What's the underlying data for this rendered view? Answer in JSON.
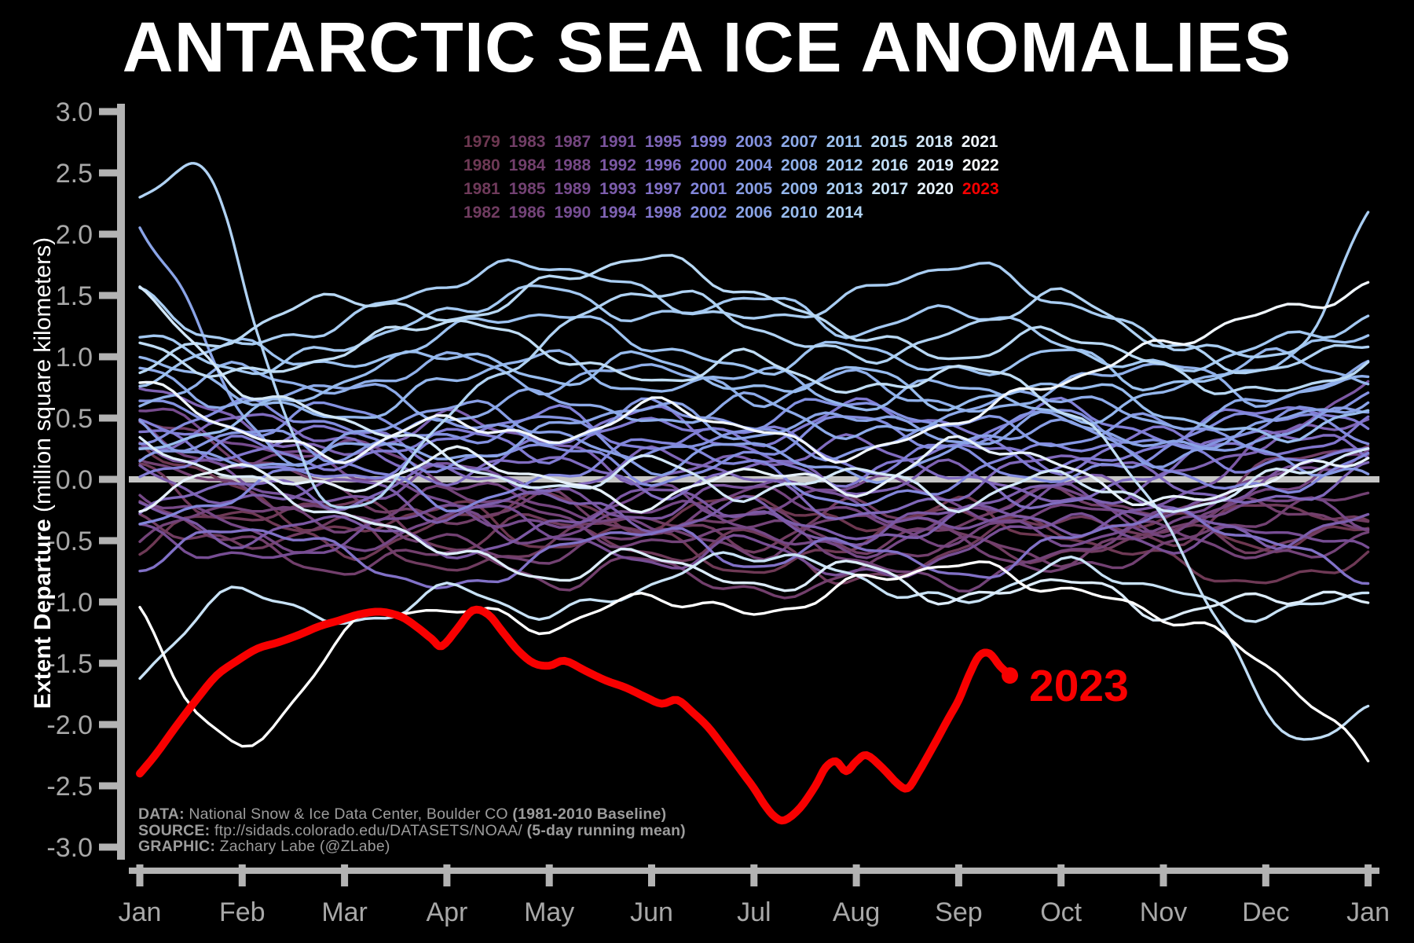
{
  "title": "ANTARCTIC SEA ICE ANOMALIES",
  "colors": {
    "background": "#000000",
    "axis": "#b3b3b3",
    "tick_label": "#a8a8a8",
    "zero_line": "#c6c6c6",
    "title_text": "#ffffff",
    "highlight_red": "#f80000",
    "footer_text": "#9c9c9c"
  },
  "y_axis": {
    "label_bold": "Extent Departure",
    "label_regular": " (million square kilometers)",
    "ticks": [
      "3.0",
      "2.5",
      "2.0",
      "1.5",
      "1.0",
      "0.5",
      "0.0",
      "-0.5",
      "-1.0",
      "-1.5",
      "-2.0",
      "-2.5",
      "-3.0"
    ]
  },
  "x_axis": {
    "ticks": [
      "Jan",
      "Feb",
      "Mar",
      "Apr",
      "May",
      "Jun",
      "Jul",
      "Aug",
      "Sep",
      "Oct",
      "Nov",
      "Dec",
      "Jan"
    ]
  },
  "annotation": {
    "label": "2023",
    "color": "#f80000"
  },
  "legend": {
    "rows": [
      [
        "1979",
        "1983",
        "1987",
        "1991",
        "1995",
        "1999",
        "2003",
        "2007",
        "2011",
        "2015",
        "2018",
        "2021"
      ],
      [
        "1980",
        "1984",
        "1988",
        "1992",
        "1996",
        "2000",
        "2004",
        "2008",
        "2012",
        "2016",
        "2019",
        "2022"
      ],
      [
        "1981",
        "1985",
        "1989",
        "1993",
        "1997",
        "2001",
        "2005",
        "2009",
        "2013",
        "2017",
        "2020",
        "2023"
      ],
      [
        "1982",
        "1986",
        "1990",
        "1994",
        "1998",
        "2002",
        "2006",
        "2010",
        "2014"
      ]
    ]
  },
  "footer": {
    "lines": [
      [
        {
          "t": "DATA: ",
          "b": 1
        },
        {
          "t": "National Snow & Ice Data Center, Boulder CO ",
          "b": 0
        },
        {
          "t": "(1981-2010 Baseline)",
          "b": 1
        }
      ],
      [
        {
          "t": "SOURCE: ",
          "b": 1
        },
        {
          "t": "ftp://sidads.colorado.edu/DATASETS/NOAA/ ",
          "b": 0
        },
        {
          "t": "(5-day running mean)",
          "b": 1
        }
      ],
      [
        {
          "t": "GRAPHIC: ",
          "b": 1
        },
        {
          "t": "Zachary Labe (@ZLabe)",
          "b": 0
        }
      ]
    ]
  },
  "chart_data": {
    "type": "line",
    "title": "ANTARCTIC SEA ICE ANOMALIES",
    "ylabel": "Extent Departure (million square kilometers)",
    "ylim": [
      -3.0,
      3.0
    ],
    "xlim_months": [
      0,
      12
    ],
    "yticks": [
      3.0,
      2.5,
      2.0,
      1.5,
      1.0,
      0.5,
      0.0,
      -0.5,
      -1.0,
      -1.5,
      -2.0,
      -2.5,
      -3.0
    ],
    "xtick_months": [
      0,
      1,
      2,
      3,
      4,
      5,
      6,
      7,
      8,
      9,
      10,
      11,
      12
    ],
    "zero_line": true,
    "grid": false,
    "legend_position": "top-center",
    "series": [
      {
        "year": "1979",
        "color": "#6d3750",
        "values": [
          0.3,
          -0.1,
          -0.45,
          -0.2,
          -0.55,
          -0.35,
          -0.15,
          -0.4,
          -0.2,
          -0.5,
          -0.3,
          -0.55,
          -0.35
        ]
      },
      {
        "year": "1980",
        "color": "#6e3955",
        "values": [
          -0.55,
          -0.25,
          -0.6,
          -0.35,
          -0.15,
          -0.45,
          -0.75,
          -0.5,
          -0.25,
          -0.45,
          -0.65,
          -0.85,
          -0.6
        ]
      },
      {
        "year": "1981",
        "color": "#6f3a5a",
        "values": [
          0.1,
          -0.35,
          -0.15,
          -0.55,
          -0.3,
          -0.65,
          -0.45,
          -0.85,
          -0.55,
          -0.3,
          -0.5,
          -0.2,
          -0.4
        ]
      },
      {
        "year": "1982",
        "color": "#703c60",
        "values": [
          -0.3,
          -0.55,
          -0.35,
          -0.75,
          -0.5,
          -0.3,
          -0.55,
          -0.2,
          -0.45,
          -0.65,
          -0.4,
          -0.55,
          -0.3
        ]
      },
      {
        "year": "1983",
        "color": "#713e66",
        "values": [
          0.5,
          0.2,
          -0.1,
          -0.35,
          -0.15,
          -0.45,
          -0.25,
          -0.55,
          -0.35,
          -0.1,
          -0.3,
          0.1,
          0.3
        ]
      },
      {
        "year": "1984",
        "color": "#723f6c",
        "values": [
          -0.2,
          -0.5,
          -0.75,
          -0.55,
          -0.85,
          -0.65,
          -0.95,
          -0.75,
          -0.5,
          -0.65,
          -0.4,
          -0.2,
          -0.45
        ]
      },
      {
        "year": "1985",
        "color": "#724172",
        "values": [
          0.2,
          -0.1,
          -0.3,
          -0.5,
          -0.65,
          -0.4,
          -0.6,
          -0.3,
          -0.5,
          -0.75,
          -0.55,
          -0.3,
          -0.1
        ]
      },
      {
        "year": "1986",
        "color": "#734378",
        "values": [
          -0.5,
          -0.2,
          -0.4,
          -0.1,
          -0.3,
          -0.55,
          -0.35,
          -0.65,
          -0.85,
          -0.6,
          -0.4,
          -0.65,
          -0.45
        ]
      },
      {
        "year": "1987",
        "color": "#74457f",
        "values": [
          0.4,
          0.1,
          0.3,
          0.0,
          -0.2,
          -0.4,
          -0.1,
          -0.3,
          -0.5,
          -0.2,
          -0.4,
          -0.1,
          0.2
        ]
      },
      {
        "year": "1988",
        "color": "#754886",
        "values": [
          -0.1,
          -0.4,
          -0.6,
          -0.3,
          -0.5,
          -0.2,
          -0.4,
          -0.6,
          -0.3,
          -0.1,
          -0.4,
          -0.15,
          -0.35
        ]
      },
      {
        "year": "1989",
        "color": "#764b8d",
        "values": [
          0.6,
          0.3,
          0.1,
          -0.2,
          -0.4,
          -0.1,
          -0.3,
          0.0,
          -0.2,
          -0.5,
          -0.3,
          0.0,
          0.2
        ]
      },
      {
        "year": "1990",
        "color": "#774e94",
        "values": [
          -0.4,
          -0.65,
          -0.5,
          -0.2,
          -0.4,
          -0.7,
          -0.5,
          -0.8,
          -0.6,
          -0.3,
          -0.55,
          -0.4,
          -0.6
        ]
      },
      {
        "year": "1991",
        "color": "#79539c",
        "values": [
          0.3,
          0.0,
          -0.2,
          0.1,
          -0.1,
          -0.3,
          0.0,
          -0.2,
          -0.4,
          -0.1,
          -0.3,
          0.0,
          0.3
        ]
      },
      {
        "year": "1992",
        "color": "#7b58a4",
        "values": [
          -0.2,
          -0.5,
          -0.3,
          -0.6,
          -0.4,
          -0.1,
          -0.3,
          -0.5,
          -0.2,
          -0.4,
          -0.2,
          0.3,
          0.8
        ]
      },
      {
        "year": "1993",
        "color": "#7c5dab",
        "values": [
          0.1,
          -0.2,
          0.0,
          -0.3,
          -0.1,
          -0.4,
          -0.2,
          -0.5,
          -0.3,
          0.0,
          -0.2,
          -0.5,
          -0.3
        ]
      },
      {
        "year": "1994",
        "color": "#7e62b2",
        "values": [
          0.8,
          0.45,
          0.2,
          0.5,
          0.3,
          0.0,
          0.2,
          -0.1,
          0.1,
          -0.2,
          0.0,
          0.3,
          0.5
        ]
      },
      {
        "year": "1995",
        "color": "#7f67b9",
        "values": [
          -0.3,
          0.0,
          -0.2,
          0.1,
          -0.1,
          0.2,
          0.0,
          -0.3,
          -0.1,
          0.2,
          0.0,
          -0.2,
          0.1
        ]
      },
      {
        "year": "1996",
        "color": "#806cc0",
        "values": [
          0.2,
          0.5,
          0.3,
          0.0,
          0.2,
          -0.1,
          0.1,
          0.3,
          0.0,
          -0.2,
          0.1,
          0.4,
          0.2
        ]
      },
      {
        "year": "1997",
        "color": "#8171c7",
        "values": [
          -0.7,
          -0.4,
          -0.6,
          -0.9,
          -0.6,
          -0.4,
          -0.7,
          -0.5,
          -0.8,
          -0.5,
          -0.3,
          -0.5,
          -0.8
        ]
      },
      {
        "year": "1998",
        "color": "#8176cd",
        "values": [
          0.4,
          0.2,
          0.45,
          0.1,
          0.3,
          0.55,
          0.2,
          0.0,
          0.3,
          0.1,
          0.4,
          0.2,
          0.45
        ]
      },
      {
        "year": "1999",
        "color": "#817bd2",
        "values": [
          0.0,
          0.3,
          0.1,
          0.4,
          0.2,
          0.5,
          0.3,
          0.6,
          0.4,
          0.1,
          0.3,
          0.6,
          0.4
        ]
      },
      {
        "year": "2000",
        "color": "#8180d7",
        "values": [
          0.5,
          0.2,
          0.0,
          0.3,
          0.55,
          0.25,
          0.45,
          0.1,
          0.3,
          0.6,
          0.3,
          0.1,
          0.3
        ]
      },
      {
        "year": "2001",
        "color": "#8286db",
        "values": [
          -0.4,
          -0.1,
          0.15,
          -0.2,
          0.0,
          0.3,
          0.1,
          -0.2,
          0.0,
          0.3,
          0.1,
          -0.1,
          0.2
        ]
      },
      {
        "year": "2002",
        "color": "#838cde",
        "values": [
          0.3,
          0.6,
          0.4,
          0.1,
          0.3,
          0.0,
          0.2,
          0.5,
          0.2,
          0.0,
          0.25,
          0.55,
          0.3
        ]
      },
      {
        "year": "2003",
        "color": "#8492e1",
        "values": [
          0.7,
          0.4,
          0.6,
          0.3,
          0.5,
          0.2,
          0.45,
          0.65,
          0.35,
          0.55,
          0.25,
          0.45,
          0.7
        ]
      },
      {
        "year": "2004",
        "color": "#8698e3",
        "values": [
          0.1,
          0.4,
          0.2,
          0.5,
          0.3,
          0.6,
          0.4,
          0.2,
          0.5,
          0.3,
          0.5,
          0.2,
          0.0
        ]
      },
      {
        "year": "2005",
        "color": "#889ee5",
        "values": [
          0.45,
          0.1,
          0.3,
          0.6,
          0.4,
          0.1,
          0.3,
          0.0,
          0.25,
          0.45,
          0.15,
          0.35,
          0.6
        ]
      },
      {
        "year": "2006",
        "color": "#8aa4e7",
        "x": [
          0,
          0.35,
          0.7,
          1.1,
          1.6,
          2.2,
          3,
          4,
          5,
          6,
          7,
          8,
          9,
          10,
          11,
          12
        ],
        "values": [
          2.1,
          1.6,
          1.0,
          0.45,
          0.1,
          0.35,
          0.15,
          0.4,
          0.6,
          0.35,
          0.55,
          0.3,
          0.5,
          0.25,
          0.45,
          0.65
        ]
      },
      {
        "year": "2007",
        "color": "#8daae9",
        "values": [
          0.9,
          0.6,
          0.8,
          0.5,
          0.7,
          0.45,
          0.65,
          0.35,
          0.55,
          0.7,
          0.45,
          0.65,
          0.9
        ]
      },
      {
        "year": "2008",
        "color": "#90b0ea",
        "values": [
          0.6,
          0.9,
          0.7,
          1.0,
          0.75,
          0.95,
          0.65,
          0.85,
          0.55,
          0.75,
          0.95,
          0.65,
          0.85
        ]
      },
      {
        "year": "2009",
        "color": "#94b6ec",
        "values": [
          1.0,
          0.7,
          0.5,
          0.8,
          1.0,
          0.7,
          0.9,
          0.6,
          0.8,
          0.5,
          0.7,
          1.0,
          0.8
        ]
      },
      {
        "year": "2010",
        "color": "#98bcee",
        "values": [
          0.2,
          0.5,
          0.8,
          1.05,
          0.8,
          1.0,
          0.7,
          0.9,
          0.6,
          0.8,
          0.55,
          0.35,
          0.55
        ]
      },
      {
        "year": "2011",
        "color": "#9dc2f0",
        "values": [
          0.8,
          1.1,
          0.9,
          1.2,
          1.35,
          1.1,
          0.9,
          1.1,
          0.85,
          1.05,
          0.75,
          0.95,
          1.2
        ]
      },
      {
        "year": "2012",
        "color": "#a3c8f1",
        "values": [
          1.2,
          0.9,
          1.1,
          1.35,
          1.55,
          1.3,
          1.5,
          1.2,
          1.4,
          1.1,
          0.9,
          1.1,
          1.3
        ]
      },
      {
        "year": "2013",
        "color": "#a9cdf2",
        "x": [
          0,
          1,
          2,
          3,
          4,
          5,
          6,
          7,
          8,
          9,
          10,
          11,
          11.5,
          12
        ],
        "values": [
          1.5,
          1.1,
          1.3,
          1.6,
          1.75,
          1.5,
          1.3,
          1.5,
          1.75,
          1.45,
          1.15,
          1.0,
          1.3,
          2.15
        ]
      },
      {
        "year": "2014",
        "color": "#b0d2f3",
        "x": [
          0,
          0.35,
          0.6,
          0.85,
          1.15,
          1.5,
          2,
          3,
          4,
          5,
          6,
          7,
          8,
          9,
          10,
          11,
          12
        ],
        "values": [
          2.3,
          2.55,
          2.5,
          2.1,
          1.2,
          0.4,
          -0.3,
          0.5,
          1.15,
          1.55,
          1.25,
          1.0,
          1.2,
          1.5,
          1.1,
          0.9,
          1.15
        ]
      },
      {
        "year": "2015",
        "color": "#b8d8f4",
        "values": [
          0.9,
          1.2,
          1.5,
          1.3,
          1.6,
          1.8,
          1.5,
          1.2,
          1.0,
          1.2,
          0.9,
          0.7,
          0.95
        ]
      },
      {
        "year": "2016",
        "color": "#c0ddf5",
        "x": [
          0,
          1,
          2,
          3,
          4,
          5,
          6,
          7,
          8,
          9,
          10,
          10.6,
          11.3,
          12
        ],
        "values": [
          1.1,
          0.85,
          1.05,
          1.3,
          1.05,
          0.8,
          1.0,
          0.7,
          0.9,
          0.6,
          -0.3,
          -1.3,
          -2.1,
          -1.9
        ]
      },
      {
        "year": "2017",
        "color": "#c8e2f6",
        "values": [
          -1.6,
          -0.9,
          -1.2,
          -0.9,
          -1.1,
          -0.85,
          -0.6,
          -0.8,
          -1.0,
          -0.7,
          -0.9,
          -1.1,
          -0.9
        ]
      },
      {
        "year": "2018",
        "color": "#d2e7f8",
        "values": [
          1.55,
          0.75,
          0.5,
          0.2,
          -0.1,
          0.15,
          -0.15,
          0.1,
          -0.2,
          0.05,
          -0.25,
          0.0,
          0.25
        ]
      },
      {
        "year": "2019",
        "color": "#dcecfa",
        "values": [
          0.3,
          0.0,
          -0.3,
          -0.55,
          -0.8,
          -0.6,
          -0.9,
          -0.7,
          -1.0,
          -0.8,
          -1.1,
          -0.95,
          -1.0
        ]
      },
      {
        "year": "2020",
        "color": "#e6f1fb",
        "values": [
          -0.2,
          0.1,
          -0.1,
          0.2,
          0.0,
          -0.2,
          0.1,
          -0.1,
          0.3,
          0.1,
          -0.2,
          0.0,
          0.2
        ]
      },
      {
        "year": "2021",
        "color": "#f0f6fd",
        "values": [
          0.8,
          0.4,
          0.2,
          0.5,
          0.3,
          0.6,
          0.4,
          0.2,
          0.5,
          0.8,
          1.1,
          1.35,
          1.55
        ]
      },
      {
        "year": "2022",
        "color": "#ffffff",
        "values": [
          -1.1,
          -2.2,
          -1.25,
          -1.05,
          -1.2,
          -0.95,
          -1.1,
          -0.85,
          -0.7,
          -0.9,
          -1.1,
          -1.5,
          -2.3
        ]
      },
      {
        "year": "2023",
        "color": "#f80000",
        "highlight": true,
        "x": [
          0,
          0.15,
          0.35,
          0.55,
          0.75,
          0.95,
          1.15,
          1.35,
          1.55,
          1.75,
          1.95,
          2.15,
          2.35,
          2.55,
          2.7,
          2.85,
          2.95,
          3.1,
          3.25,
          3.4,
          3.55,
          3.7,
          3.85,
          4.0,
          4.15,
          4.35,
          4.55,
          4.75,
          4.95,
          5.1,
          5.25,
          5.4,
          5.55,
          5.7,
          5.85,
          6.0,
          6.1,
          6.2,
          6.3,
          6.45,
          6.6,
          6.7,
          6.8,
          6.9,
          7.0,
          7.1,
          7.25,
          7.4,
          7.5,
          7.6,
          7.75,
          7.9,
          8.0,
          8.1,
          8.2,
          8.3,
          8.4,
          8.5
        ],
        "values": [
          -2.4,
          -2.25,
          -2.02,
          -1.8,
          -1.6,
          -1.48,
          -1.38,
          -1.33,
          -1.27,
          -1.2,
          -1.15,
          -1.1,
          -1.08,
          -1.12,
          -1.2,
          -1.3,
          -1.36,
          -1.22,
          -1.07,
          -1.1,
          -1.25,
          -1.4,
          -1.5,
          -1.52,
          -1.48,
          -1.56,
          -1.64,
          -1.7,
          -1.78,
          -1.83,
          -1.8,
          -1.9,
          -2.02,
          -2.18,
          -2.35,
          -2.52,
          -2.65,
          -2.75,
          -2.78,
          -2.68,
          -2.5,
          -2.35,
          -2.3,
          -2.38,
          -2.3,
          -2.25,
          -2.35,
          -2.48,
          -2.52,
          -2.4,
          -2.18,
          -1.95,
          -1.8,
          -1.6,
          -1.44,
          -1.42,
          -1.52,
          -1.6
        ]
      }
    ]
  }
}
